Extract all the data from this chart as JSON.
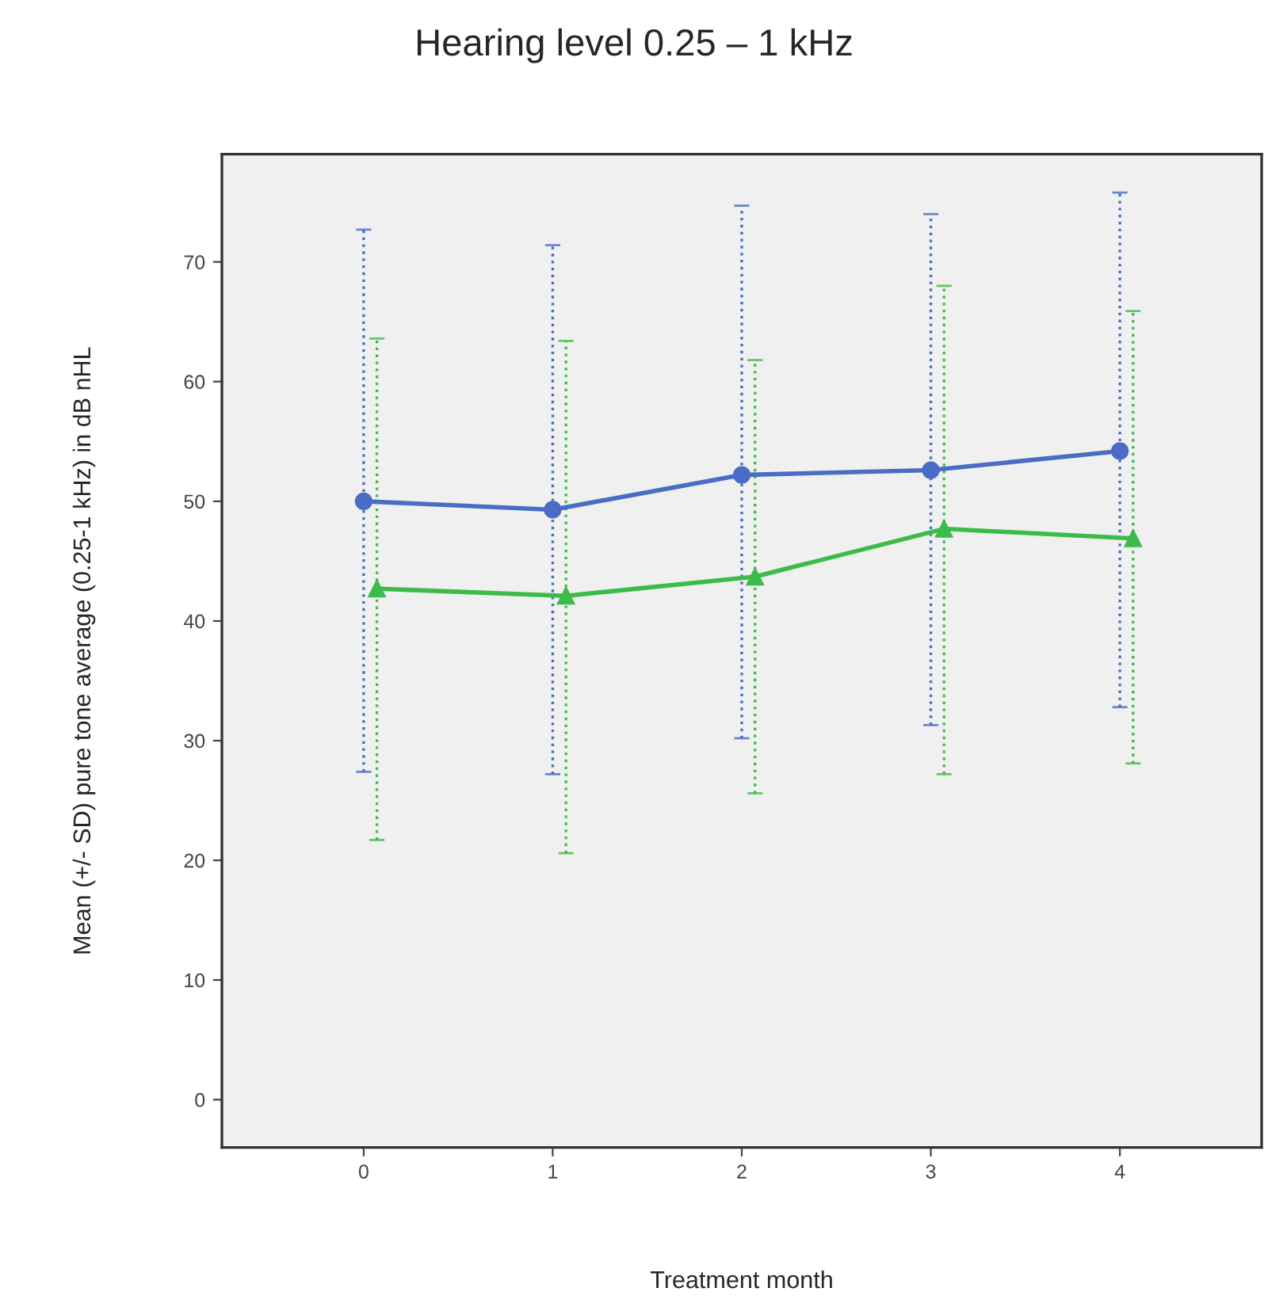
{
  "chart_data": {
    "type": "line",
    "title": "Hearing level 0.25 – 1 kHz",
    "xlabel": "Treatment month",
    "ylabel": "Mean (+/- SD) pure tone average (0.25-1 kHz) in dB nHL",
    "xlim": [
      -0.75,
      4.75
    ],
    "xticks": [
      0,
      1,
      2,
      3,
      4
    ],
    "ylim": [
      -4,
      79
    ],
    "yticks": [
      0,
      10,
      20,
      30,
      40,
      50,
      60,
      70
    ],
    "grid": false,
    "legend": false,
    "series": [
      {
        "color": "#4a6cc4",
        "marker": "circle",
        "line_style": "solid",
        "x": [
          0,
          1,
          2,
          3,
          4
        ],
        "values": [
          50.0,
          49.3,
          52.2,
          52.6,
          54.2
        ],
        "errors": [
          [
            27.4,
            72.7
          ],
          [
            27.2,
            71.4
          ],
          [
            30.2,
            74.7
          ],
          [
            31.3,
            74.0
          ],
          [
            32.8,
            75.8
          ]
        ]
      },
      {
        "color": "#3dbb4a",
        "marker": "triangle",
        "line_style": "solid",
        "x": [
          0.07,
          1.07,
          2.07,
          3.07,
          4.07
        ],
        "values": [
          42.7,
          42.1,
          43.7,
          47.7,
          46.9
        ],
        "errors": [
          [
            21.7,
            63.6
          ],
          [
            20.6,
            63.4
          ],
          [
            25.6,
            61.8
          ],
          [
            27.2,
            68.0
          ],
          [
            28.1,
            65.9
          ]
        ]
      }
    ]
  }
}
